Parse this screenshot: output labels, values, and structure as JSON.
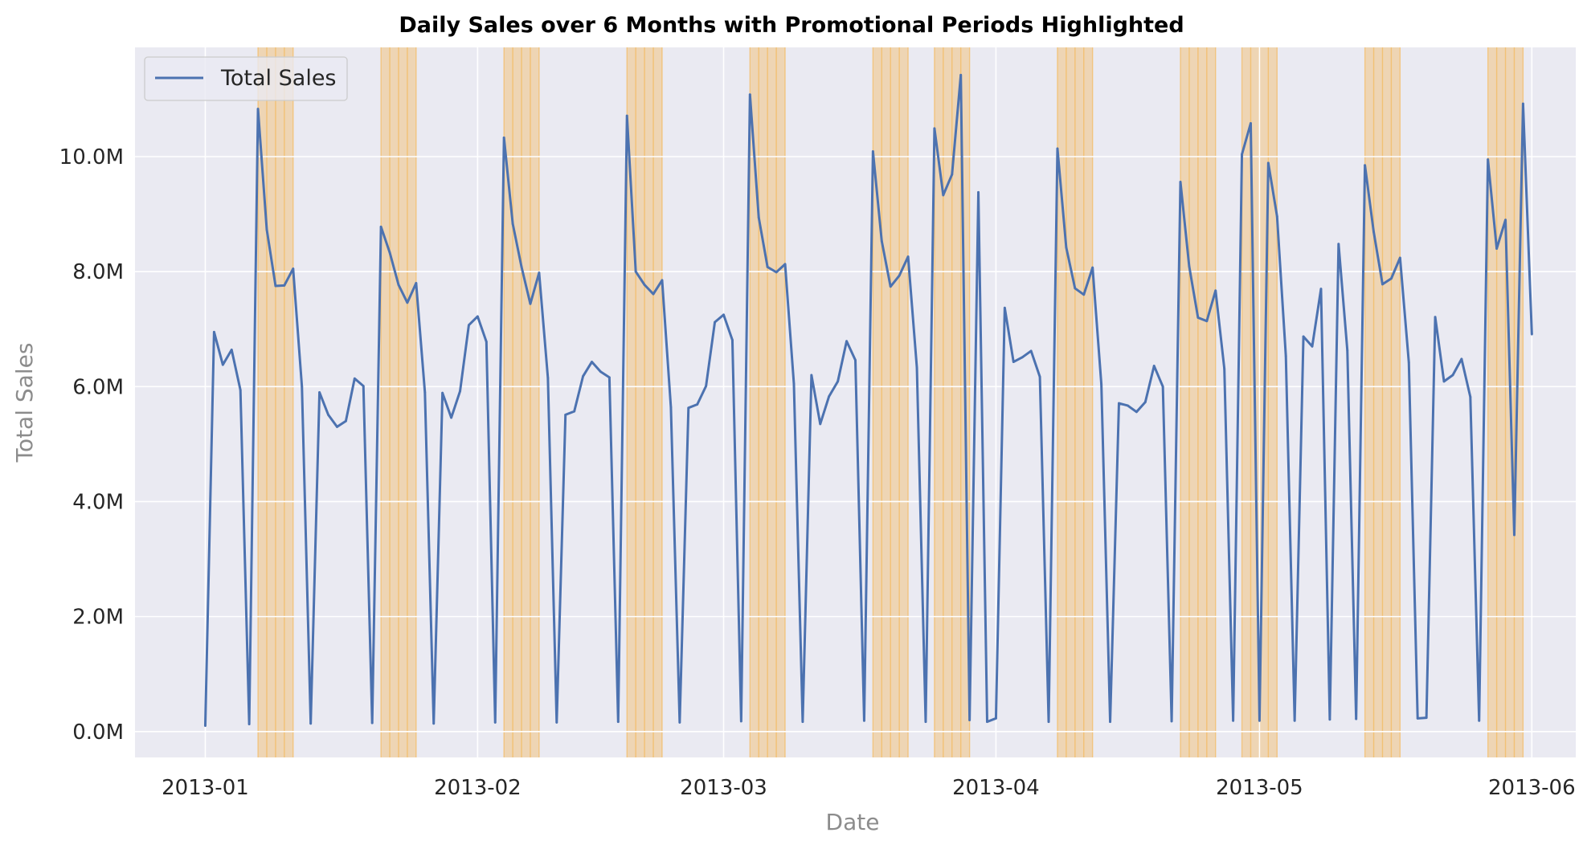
{
  "chart_data": {
    "type": "line",
    "title": "Daily Sales over 6 Months with Promotional Periods Highlighted",
    "xlabel": "Date",
    "ylabel": "Total Sales",
    "xlim": [
      "2012-12-24",
      "2013-06-06"
    ],
    "ylim": [
      -450000,
      11900000
    ],
    "x_ticks": [
      {
        "date": "2013-01-01",
        "label": "2013-01"
      },
      {
        "date": "2013-02-01",
        "label": "2013-02"
      },
      {
        "date": "2013-03-01",
        "label": "2013-03"
      },
      {
        "date": "2013-04-01",
        "label": "2013-04"
      },
      {
        "date": "2013-05-01",
        "label": "2013-05"
      },
      {
        "date": "2013-06-01",
        "label": "2013-06"
      }
    ],
    "y_ticks": [
      {
        "value": 0,
        "label": "0.0M"
      },
      {
        "value": 2000000,
        "label": "2.0M"
      },
      {
        "value": 4000000,
        "label": "4.0M"
      },
      {
        "value": 6000000,
        "label": "6.0M"
      },
      {
        "value": 8000000,
        "label": "8.0M"
      },
      {
        "value": 10000000,
        "label": "10.0M"
      }
    ],
    "grid": true,
    "legend": {
      "position": "top-left",
      "entries": [
        "Total Sales"
      ]
    },
    "colors": {
      "line": "#4c72b0",
      "background": "#eaeaf2",
      "grid": "#ffffff",
      "promo": "#f5b041"
    },
    "promo_periods": [
      [
        "2013-01-07",
        "2013-01-11"
      ],
      [
        "2013-01-21",
        "2013-01-25"
      ],
      [
        "2013-02-04",
        "2013-02-08"
      ],
      [
        "2013-02-18",
        "2013-02-22"
      ],
      [
        "2013-03-04",
        "2013-03-08"
      ],
      [
        "2013-03-18",
        "2013-03-22"
      ],
      [
        "2013-03-25",
        "2013-03-29"
      ],
      [
        "2013-04-08",
        "2013-04-12"
      ],
      [
        "2013-04-22",
        "2013-04-26"
      ],
      [
        "2013-04-29",
        "2013-05-03"
      ],
      [
        "2013-05-13",
        "2013-05-17"
      ],
      [
        "2013-05-27",
        "2013-05-31"
      ]
    ],
    "series": [
      {
        "name": "Total Sales",
        "x": [
          "2013-01-01",
          "2013-01-02",
          "2013-01-03",
          "2013-01-04",
          "2013-01-05",
          "2013-01-06",
          "2013-01-07",
          "2013-01-08",
          "2013-01-09",
          "2013-01-10",
          "2013-01-11",
          "2013-01-12",
          "2013-01-13",
          "2013-01-14",
          "2013-01-15",
          "2013-01-16",
          "2013-01-17",
          "2013-01-18",
          "2013-01-19",
          "2013-01-20",
          "2013-01-21",
          "2013-01-22",
          "2013-01-23",
          "2013-01-24",
          "2013-01-25",
          "2013-01-26",
          "2013-01-27",
          "2013-01-28",
          "2013-01-29",
          "2013-01-30",
          "2013-01-31",
          "2013-02-01",
          "2013-02-02",
          "2013-02-03",
          "2013-02-04",
          "2013-02-05",
          "2013-02-06",
          "2013-02-07",
          "2013-02-08",
          "2013-02-09",
          "2013-02-10",
          "2013-02-11",
          "2013-02-12",
          "2013-02-13",
          "2013-02-14",
          "2013-02-15",
          "2013-02-16",
          "2013-02-17",
          "2013-02-18",
          "2013-02-19",
          "2013-02-20",
          "2013-02-21",
          "2013-02-22",
          "2013-02-23",
          "2013-02-24",
          "2013-02-25",
          "2013-02-26",
          "2013-02-27",
          "2013-02-28",
          "2013-03-01",
          "2013-03-02",
          "2013-03-03",
          "2013-03-04",
          "2013-03-05",
          "2013-03-06",
          "2013-03-07",
          "2013-03-08",
          "2013-03-09",
          "2013-03-10",
          "2013-03-11",
          "2013-03-12",
          "2013-03-13",
          "2013-03-14",
          "2013-03-15",
          "2013-03-16",
          "2013-03-17",
          "2013-03-18",
          "2013-03-19",
          "2013-03-20",
          "2013-03-21",
          "2013-03-22",
          "2013-03-23",
          "2013-03-24",
          "2013-03-25",
          "2013-03-26",
          "2013-03-27",
          "2013-03-28",
          "2013-03-29",
          "2013-03-30",
          "2013-03-31",
          "2013-04-01",
          "2013-04-02",
          "2013-04-03",
          "2013-04-04",
          "2013-04-05",
          "2013-04-06",
          "2013-04-07",
          "2013-04-08",
          "2013-04-09",
          "2013-04-10",
          "2013-04-11",
          "2013-04-12",
          "2013-04-13",
          "2013-04-14",
          "2013-04-15",
          "2013-04-16",
          "2013-04-17",
          "2013-04-18",
          "2013-04-19",
          "2013-04-20",
          "2013-04-21",
          "2013-04-22",
          "2013-04-23",
          "2013-04-24",
          "2013-04-25",
          "2013-04-26",
          "2013-04-27",
          "2013-04-28",
          "2013-04-29",
          "2013-04-30",
          "2013-05-01",
          "2013-05-02",
          "2013-05-03",
          "2013-05-04",
          "2013-05-05",
          "2013-05-06",
          "2013-05-07",
          "2013-05-08",
          "2013-05-09",
          "2013-05-10",
          "2013-05-11",
          "2013-05-12",
          "2013-05-13",
          "2013-05-14",
          "2013-05-15",
          "2013-05-16",
          "2013-05-17",
          "2013-05-18",
          "2013-05-19",
          "2013-05-20",
          "2013-05-21",
          "2013-05-22",
          "2013-05-23",
          "2013-05-24",
          "2013-05-25",
          "2013-05-26",
          "2013-05-27",
          "2013-05-28",
          "2013-05-29",
          "2013-05-30",
          "2013-05-31",
          "2013-06-01"
        ],
        "y": [
          100000,
          6950000,
          6380000,
          6640000,
          5940000,
          130000,
          10830000,
          8730000,
          7750000,
          7760000,
          8050000,
          6000000,
          140000,
          5900000,
          5510000,
          5300000,
          5400000,
          6140000,
          6010000,
          150000,
          8780000,
          8330000,
          7770000,
          7460000,
          7800000,
          5900000,
          140000,
          5890000,
          5460000,
          5920000,
          7070000,
          7220000,
          6780000,
          160000,
          10330000,
          8830000,
          8080000,
          7440000,
          7980000,
          6150000,
          160000,
          5510000,
          5570000,
          6180000,
          6430000,
          6260000,
          6160000,
          170000,
          10710000,
          8000000,
          7770000,
          7610000,
          7850000,
          5640000,
          160000,
          5630000,
          5690000,
          6010000,
          7120000,
          7250000,
          6810000,
          180000,
          11080000,
          8940000,
          8080000,
          7990000,
          8130000,
          6050000,
          170000,
          6200000,
          5350000,
          5830000,
          6090000,
          6790000,
          6460000,
          190000,
          10090000,
          8530000,
          7740000,
          7930000,
          8260000,
          6330000,
          170000,
          10490000,
          9330000,
          9690000,
          11420000,
          200000,
          9380000,
          170000,
          230000,
          7370000,
          6430000,
          6510000,
          6620000,
          6170000,
          170000,
          10140000,
          8420000,
          7710000,
          7600000,
          8070000,
          6040000,
          170000,
          5710000,
          5670000,
          5560000,
          5730000,
          6360000,
          6000000,
          180000,
          9560000,
          8090000,
          7200000,
          7140000,
          7670000,
          6310000,
          190000,
          10040000,
          10580000,
          190000,
          9890000,
          8960000,
          6530000,
          190000,
          6870000,
          6700000,
          7700000,
          210000,
          8480000,
          6630000,
          220000,
          9850000,
          8690000,
          7780000,
          7880000,
          8240000,
          6420000,
          230000,
          240000,
          7210000,
          6090000,
          6200000,
          6480000,
          5820000,
          190000,
          9950000,
          8400000,
          8900000,
          3420000,
          10920000,
          6910000
        ]
      }
    ]
  }
}
